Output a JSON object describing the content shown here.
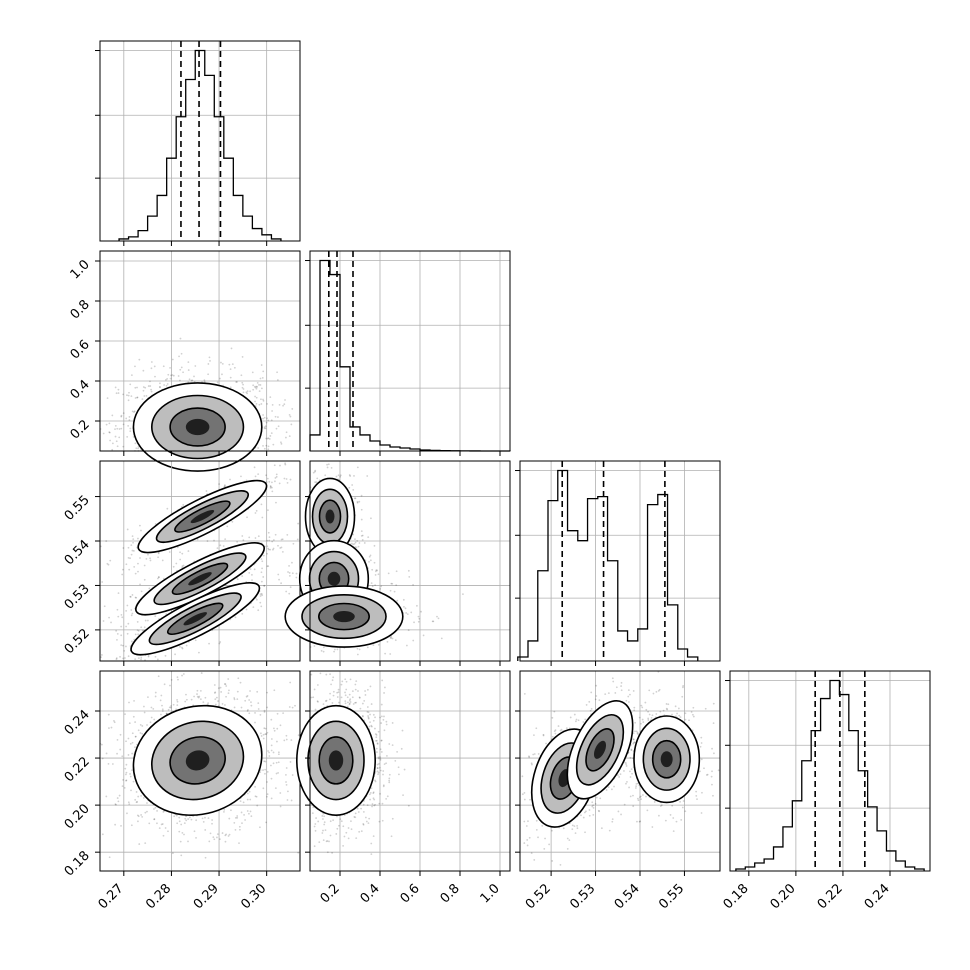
{
  "chart_data": {
    "type": "corner",
    "n_params": 4,
    "colors": {
      "scatter": "#000000",
      "contour": "#000000",
      "grid": "#b0b0b0",
      "quantile_line": "#000000"
    },
    "grid": true,
    "axes_labels": [
      "",
      "",
      "",
      ""
    ],
    "ranges": [
      [
        0.265,
        0.307
      ],
      [
        0.05,
        1.05
      ],
      [
        0.513,
        0.558
      ],
      [
        0.172,
        0.257
      ]
    ],
    "ticks": [
      {
        "values": [
          0.27,
          0.28,
          0.29,
          0.3
        ],
        "labels": [
          "0.27",
          "0.28",
          "0.29",
          "0.30"
        ]
      },
      {
        "values": [
          0.2,
          0.4,
          0.6,
          0.8,
          1.0
        ],
        "labels": [
          "0.2",
          "0.4",
          "0.6",
          "0.8",
          "1.0"
        ]
      },
      {
        "values": [
          0.52,
          0.53,
          0.54,
          0.55
        ],
        "labels": [
          "0.52",
          "0.53",
          "0.54",
          "0.55"
        ]
      },
      {
        "values": [
          0.18,
          0.2,
          0.22,
          0.24
        ],
        "labels": [
          "0.18",
          "0.20",
          "0.22",
          "0.24"
        ]
      }
    ],
    "histograms": [
      {
        "param": 0,
        "bins": [
          0.269,
          0.271,
          0.273,
          0.275,
          0.277,
          0.279,
          0.281,
          0.283,
          0.285,
          0.287,
          0.289,
          0.291,
          0.293,
          0.295,
          0.297,
          0.299,
          0.301,
          0.303
        ],
        "counts": [
          1,
          2,
          5,
          12,
          22,
          40,
          60,
          78,
          92,
          80,
          60,
          40,
          22,
          12,
          6,
          3,
          1
        ],
        "quantiles": [
          0.282,
          0.2858,
          0.2903
        ]
      },
      {
        "param": 1,
        "bins": [
          0.05,
          0.1,
          0.15,
          0.2,
          0.25,
          0.3,
          0.35,
          0.4,
          0.45,
          0.5,
          0.55,
          0.6,
          0.65,
          0.7,
          0.75,
          0.8,
          0.85,
          0.9,
          0.95,
          1.0,
          1.05
        ],
        "counts": [
          8,
          95,
          88,
          42,
          12,
          8,
          5,
          3,
          2,
          1.5,
          1,
          0.5,
          0.3,
          0.2,
          0.1,
          0.05,
          0.02,
          0.01,
          0.01,
          0.01
        ],
        "quantiles": [
          0.144,
          0.185,
          0.265
        ]
      },
      {
        "param": 2,
        "bins": [
          0.5125,
          0.5148,
          0.517,
          0.5193,
          0.5215,
          0.5237,
          0.526,
          0.5282,
          0.5305,
          0.5327,
          0.535,
          0.5372,
          0.5395,
          0.5417,
          0.544,
          0.5462,
          0.5485,
          0.5507,
          0.553
        ],
        "counts": [
          2,
          10,
          45,
          80,
          95,
          65,
          60,
          81,
          82,
          50,
          15,
          10,
          16,
          78,
          83,
          28,
          6,
          2
        ],
        "quantiles": [
          0.5225,
          0.5318,
          0.5456
        ]
      },
      {
        "param": 3,
        "bins": [
          0.1745,
          0.1785,
          0.1825,
          0.1865,
          0.1905,
          0.1945,
          0.1985,
          0.2025,
          0.2065,
          0.2105,
          0.2145,
          0.2185,
          0.2225,
          0.2265,
          0.2305,
          0.2345,
          0.2385,
          0.2425,
          0.2465,
          0.2505,
          0.2545
        ],
        "counts": [
          1,
          2,
          4,
          6,
          12,
          22,
          35,
          55,
          70,
          86,
          95,
          88,
          70,
          50,
          32,
          20,
          10,
          5,
          2,
          1
        ],
        "quantiles": [
          0.2082,
          0.2187,
          0.2293
        ]
      }
    ],
    "correlations": [
      {
        "x": 0,
        "y": 1,
        "blobs": [
          {
            "cx": 0.2855,
            "cy": 0.17,
            "sx": 0.0055,
            "sy": 0.09,
            "rho": 0
          }
        ]
      },
      {
        "x": 0,
        "y": 2,
        "blobs": [
          {
            "cx": 0.2865,
            "cy": 0.5455,
            "sx": 0.0055,
            "sy": 0.0033,
            "rho": 0.85
          },
          {
            "cx": 0.286,
            "cy": 0.5315,
            "sx": 0.0055,
            "sy": 0.0033,
            "rho": 0.85
          },
          {
            "cx": 0.285,
            "cy": 0.5225,
            "sx": 0.0055,
            "sy": 0.0033,
            "rho": 0.85
          }
        ]
      },
      {
        "x": 0,
        "y": 3,
        "blobs": [
          {
            "cx": 0.2855,
            "cy": 0.219,
            "sx": 0.0055,
            "sy": 0.0095,
            "rho": 0.1
          }
        ]
      },
      {
        "x": 1,
        "y": 2,
        "blobs": [
          {
            "cx": 0.15,
            "cy": 0.5455,
            "sx": 0.05,
            "sy": 0.0035,
            "rho": 0
          },
          {
            "cx": 0.17,
            "cy": 0.5315,
            "sx": 0.07,
            "sy": 0.0035,
            "rho": 0
          },
          {
            "cx": 0.22,
            "cy": 0.523,
            "sx": 0.12,
            "sy": 0.0028,
            "rho": 0
          }
        ]
      },
      {
        "x": 1,
        "y": 3,
        "blobs": [
          {
            "cx": 0.18,
            "cy": 0.219,
            "sx": 0.08,
            "sy": 0.0095,
            "rho": 0
          }
        ]
      },
      {
        "x": 2,
        "y": 3,
        "blobs": [
          {
            "cx": 0.523,
            "cy": 0.2115,
            "sx": 0.003,
            "sy": 0.0085,
            "rho": 0.3
          },
          {
            "cx": 0.531,
            "cy": 0.2235,
            "sx": 0.003,
            "sy": 0.0085,
            "rho": 0.5
          },
          {
            "cx": 0.546,
            "cy": 0.2195,
            "sx": 0.003,
            "sy": 0.0075,
            "rho": 0
          }
        ]
      }
    ],
    "hist_y_ticks": true
  }
}
